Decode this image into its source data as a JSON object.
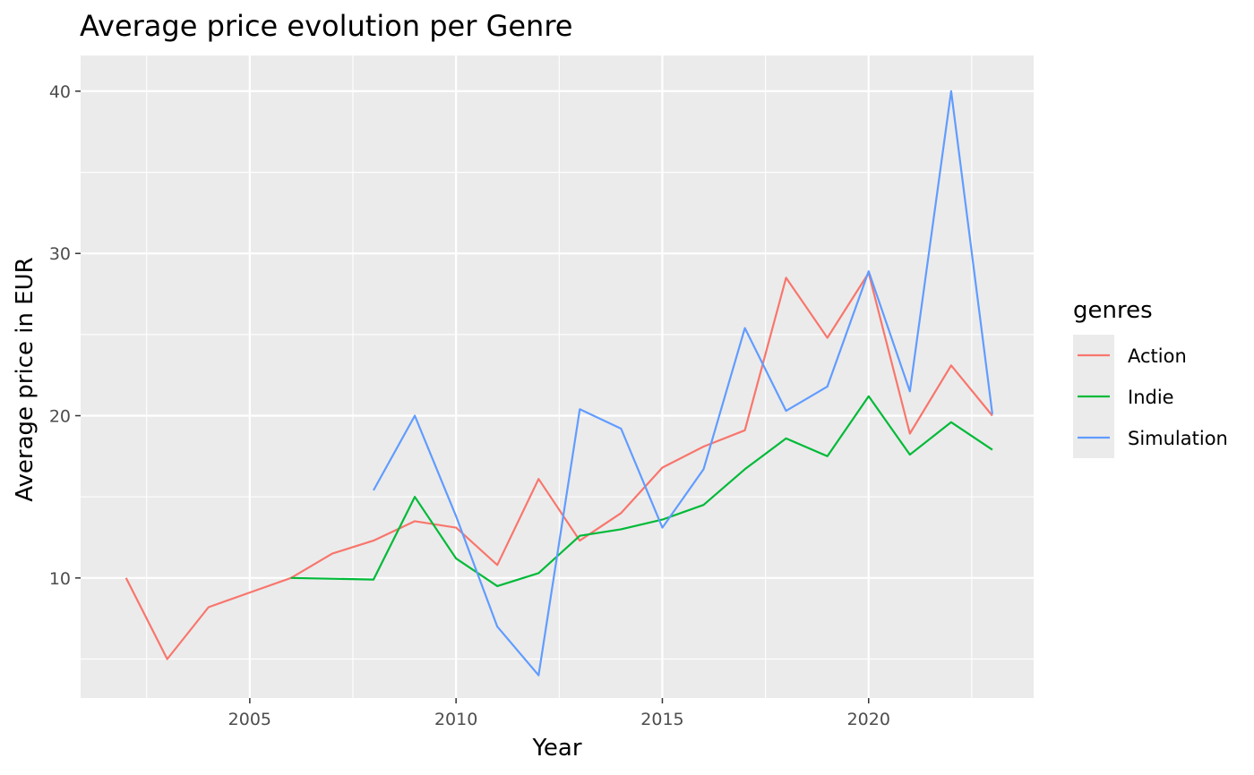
{
  "chart_data": {
    "type": "line",
    "title": "Average price evolution per Genre",
    "xlabel": "Year",
    "ylabel": "Average price in EUR",
    "xlim": [
      2000.9,
      2024.0
    ],
    "ylim": [
      2.6,
      42.2
    ],
    "x_ticks": [
      2005,
      2010,
      2015,
      2020
    ],
    "x_tick_labels": [
      "2005",
      "2010",
      "2015",
      "2020"
    ],
    "y_ticks": [
      10,
      20,
      30,
      40
    ],
    "y_tick_labels": [
      "10",
      "20",
      "30",
      "40"
    ],
    "grid": true,
    "background": "#ebebeb",
    "legend": {
      "title": "genres",
      "position": "right"
    },
    "series": [
      {
        "name": "Action",
        "color": "#f8766d",
        "points": [
          [
            2002,
            10.0
          ],
          [
            2003,
            5.0
          ],
          [
            2004,
            8.2
          ],
          [
            2005,
            9.1
          ],
          [
            2006,
            10.0
          ],
          [
            2007,
            11.5
          ],
          [
            2008,
            12.3
          ],
          [
            2009,
            13.5
          ],
          [
            2010,
            13.1
          ],
          [
            2011,
            10.8
          ],
          [
            2012,
            16.1
          ],
          [
            2013,
            12.3
          ],
          [
            2014,
            14.0
          ],
          [
            2015,
            16.8
          ],
          [
            2016,
            18.1
          ],
          [
            2017,
            19.1
          ],
          [
            2018,
            28.5
          ],
          [
            2019,
            24.8
          ],
          [
            2020,
            28.8
          ],
          [
            2021,
            18.9
          ],
          [
            2022,
            23.1
          ],
          [
            2023,
            20.0
          ]
        ]
      },
      {
        "name": "Indie",
        "color": "#00ba38",
        "points": [
          [
            2006,
            10.0
          ],
          [
            2008,
            9.9
          ],
          [
            2009,
            15.0
          ],
          [
            2010,
            11.2
          ],
          [
            2011,
            9.5
          ],
          [
            2012,
            10.3
          ],
          [
            2013,
            12.6
          ],
          [
            2014,
            13.0
          ],
          [
            2015,
            13.6
          ],
          [
            2016,
            14.5
          ],
          [
            2017,
            16.7
          ],
          [
            2018,
            18.6
          ],
          [
            2019,
            17.5
          ],
          [
            2020,
            21.2
          ],
          [
            2021,
            17.6
          ],
          [
            2022,
            19.6
          ],
          [
            2023,
            17.9
          ]
        ]
      },
      {
        "name": "Simulation",
        "color": "#619cff",
        "points": [
          [
            2008,
            15.4
          ],
          [
            2009,
            20.0
          ],
          [
            2010,
            13.8
          ],
          [
            2011,
            7.0
          ],
          [
            2012,
            4.0
          ],
          [
            2013,
            20.4
          ],
          [
            2014,
            19.2
          ],
          [
            2015,
            13.1
          ],
          [
            2016,
            16.7
          ],
          [
            2017,
            25.4
          ],
          [
            2018,
            20.3
          ],
          [
            2019,
            21.8
          ],
          [
            2020,
            28.9
          ],
          [
            2021,
            21.5
          ],
          [
            2022,
            40.0
          ],
          [
            2023,
            20.1
          ]
        ]
      }
    ]
  }
}
